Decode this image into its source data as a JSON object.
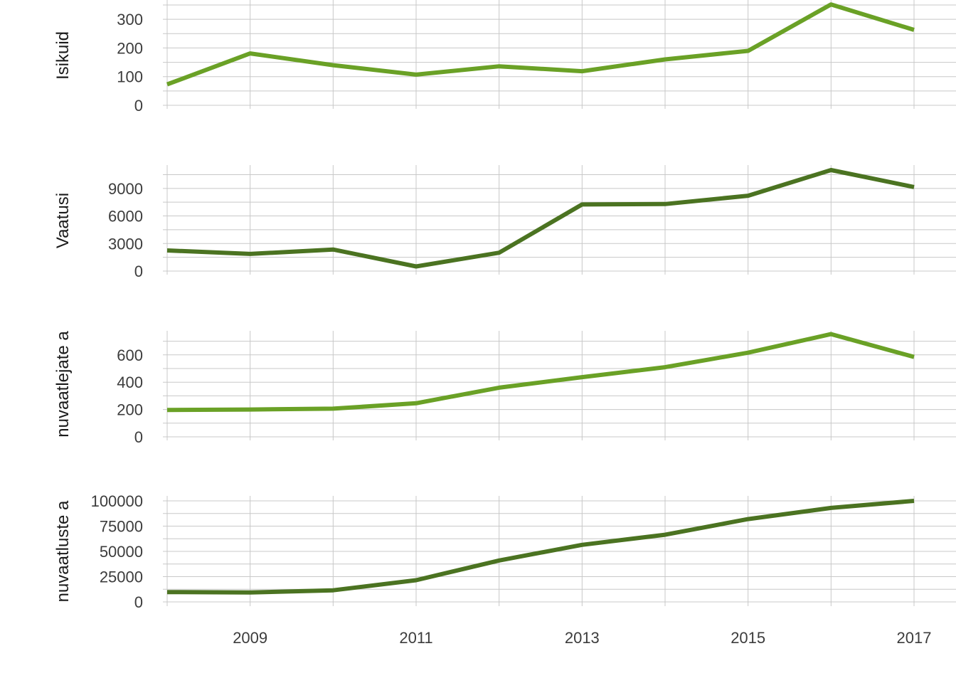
{
  "chart_data": [
    {
      "type": "line",
      "ylabel": "Isikuid",
      "color": "#6aa126",
      "x": [
        2008,
        2009,
        2010,
        2011,
        2012,
        2013,
        2014,
        2015,
        2016,
        2017
      ],
      "values": [
        73,
        181,
        140,
        107,
        136,
        119,
        160,
        190,
        352,
        263
      ],
      "ylim": [
        0,
        350
      ],
      "yticks": [
        0,
        100,
        200,
        300
      ],
      "grid": true
    },
    {
      "type": "line",
      "ylabel": "Vaatusi",
      "color": "#4b7321",
      "x": [
        2008,
        2009,
        2010,
        2011,
        2012,
        2013,
        2014,
        2015,
        2016,
        2017
      ],
      "values": [
        2250,
        1870,
        2350,
        500,
        2000,
        7250,
        7300,
        8200,
        11000,
        9150
      ],
      "ylim": [
        0,
        11000
      ],
      "yticks": [
        0,
        3000,
        6000,
        9000
      ],
      "grid": true
    },
    {
      "type": "line",
      "ylabel": "nuvaatlejate a",
      "color": "#6aa126",
      "x": [
        2008,
        2009,
        2010,
        2011,
        2012,
        2013,
        2014,
        2015,
        2016,
        2017
      ],
      "values": [
        197,
        200,
        206,
        246,
        360,
        437,
        510,
        616,
        752,
        585
      ],
      "ylim": [
        0,
        750
      ],
      "yticks": [
        0,
        200,
        400,
        600
      ],
      "grid": true
    },
    {
      "type": "line",
      "ylabel": "nuvaatluste a",
      "color": "#4b7321",
      "x": [
        2008,
        2009,
        2010,
        2011,
        2012,
        2013,
        2014,
        2015,
        2016,
        2017
      ],
      "values": [
        9700,
        9300,
        11500,
        21500,
        41000,
        56500,
        66500,
        82000,
        93000,
        100000
      ],
      "ylim": [
        0,
        100000
      ],
      "yticks": [
        0,
        25000,
        50000,
        75000,
        100000
      ],
      "grid": true
    }
  ],
  "x_axis": {
    "tick_labels": [
      "2009",
      "2011",
      "2013",
      "2015",
      "2017"
    ],
    "tick_values": [
      2009,
      2011,
      2013,
      2015,
      2017
    ]
  }
}
